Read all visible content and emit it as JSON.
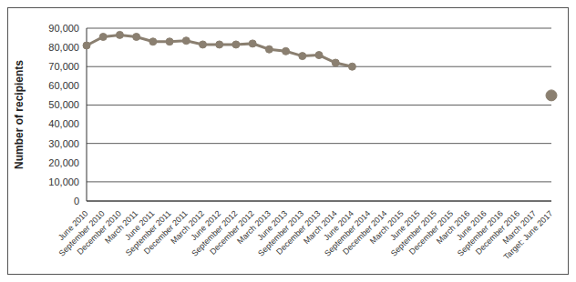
{
  "chart_data": {
    "type": "line",
    "y_label": "Number of recipients",
    "categories": [
      "June 2010",
      "September 2010",
      "December 2010",
      "March 2011",
      "June 2011",
      "September 2011",
      "December 2011",
      "March 2012",
      "June 2012",
      "September 2012",
      "December 2012",
      "March 2013",
      "June 2013",
      "September 2013",
      "December 2013",
      "March 2014",
      "June 2014",
      "September 2014",
      "December 2014",
      "March 2015",
      "June 2015",
      "September 2015",
      "December 2015",
      "March 2016",
      "June 2016",
      "September 2016",
      "December 2016",
      "March 2017",
      "Target: June 2017"
    ],
    "series": [
      {
        "type": "line",
        "marker": "circle",
        "color": "#8a7f70",
        "values": [
          81000,
          85500,
          86500,
          85500,
          83000,
          83000,
          83500,
          81500,
          81500,
          81500,
          82000,
          79000,
          78000,
          75500,
          76000,
          72000,
          70000,
          null,
          null,
          null,
          null,
          null,
          null,
          null,
          null,
          null,
          null,
          null,
          null
        ]
      },
      {
        "type": "scatter",
        "marker": "circle",
        "color": "#8a7f70",
        "values": [
          null,
          null,
          null,
          null,
          null,
          null,
          null,
          null,
          null,
          null,
          null,
          null,
          null,
          null,
          null,
          null,
          null,
          null,
          null,
          null,
          null,
          null,
          null,
          null,
          null,
          null,
          null,
          null,
          55000
        ]
      }
    ],
    "ylim": [
      0,
      90000
    ],
    "yticks": [
      0,
      {
        "value": 10000,
        "label": "10,000"
      },
      {
        "value": 20000,
        "label": "20,000"
      },
      {
        "value": 30000,
        "label": "30,000"
      },
      {
        "value": 40000,
        "label": "40,000"
      },
      {
        "value": 50000,
        "label": "50,000"
      },
      {
        "value": 60000,
        "label": "60,000"
      },
      {
        "value": 70000,
        "label": "70,000"
      },
      {
        "value": 80000,
        "label": "80,000"
      },
      {
        "value": 90000,
        "label": "90,000"
      }
    ],
    "grid": true
  }
}
